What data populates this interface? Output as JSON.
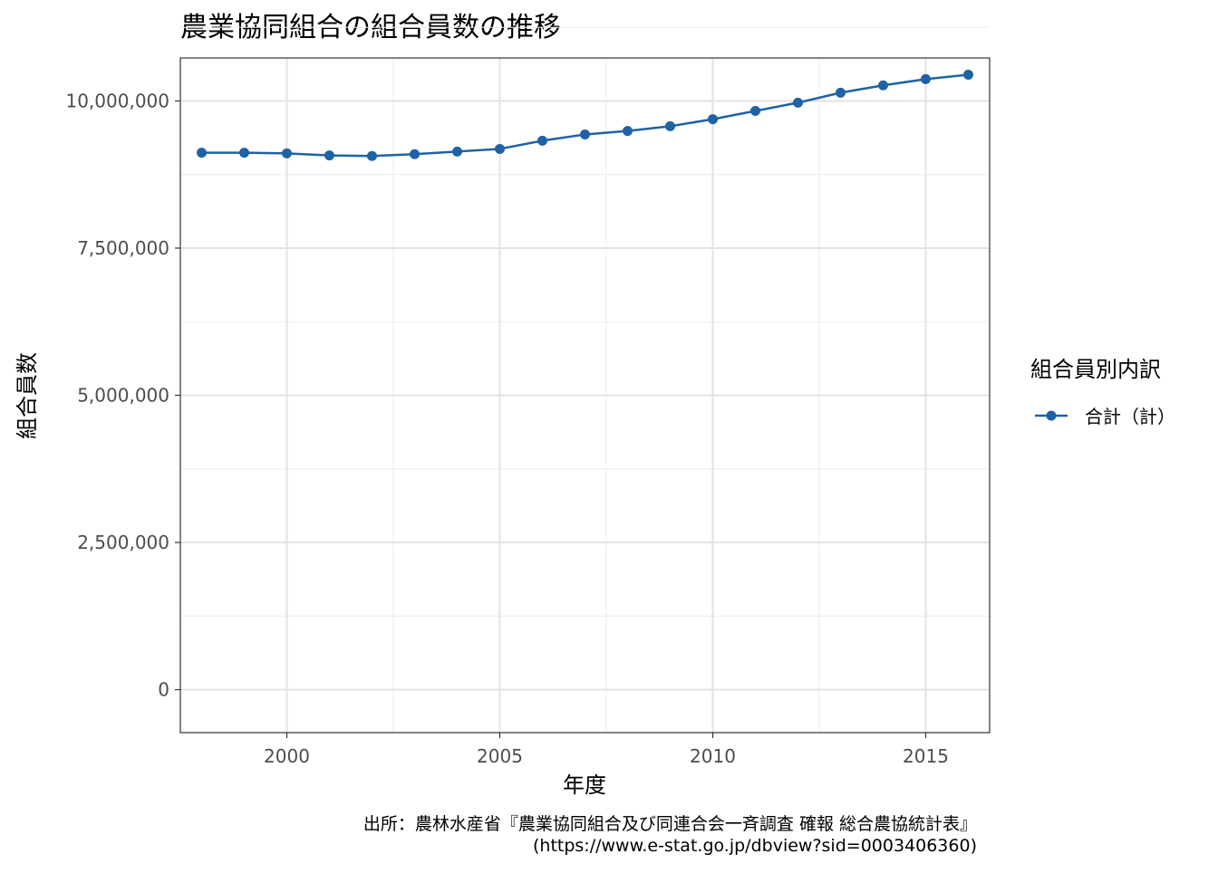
{
  "chart_data": {
    "type": "line",
    "title": "農業協同組合の組合員数の推移",
    "xlabel": "年度",
    "ylabel": "組合員数",
    "xlim": [
      1997.5,
      2016.5
    ],
    "ylim": [
      -730000,
      10730000
    ],
    "x_ticks": [
      2000,
      2005,
      2010,
      2015
    ],
    "x_tick_labels": [
      "2000",
      "2005",
      "2010",
      "2015"
    ],
    "y_ticks": [
      0,
      2500000,
      5000000,
      7500000,
      10000000
    ],
    "y_tick_labels": [
      "0",
      "2,500,000",
      "5,000,000",
      "7,500,000",
      "10,000,000"
    ],
    "grid": true,
    "legend": {
      "title": "組合員別内訳",
      "position": "right"
    },
    "x": [
      1998,
      1999,
      2000,
      2001,
      2002,
      2003,
      2004,
      2005,
      2006,
      2007,
      2008,
      2009,
      2010,
      2011,
      2012,
      2013,
      2014,
      2015,
      2016
    ],
    "series": [
      {
        "name": "合計（計）",
        "color": "#1f62a5",
        "values": [
          9120000,
          9120000,
          9110000,
          9075000,
          9065000,
          9095000,
          9140000,
          9185000,
          9325000,
          9430000,
          9490000,
          9570000,
          9690000,
          9830000,
          9970000,
          10140000,
          10265000,
          10370000,
          10445000
        ]
      }
    ],
    "caption": [
      "出所：農林水産省『農業協同組合及び同連合会一斉調査 確報 総合農協統計表』",
      "(https://www.e-stat.go.jp/dbview?sid=0003406360)"
    ]
  }
}
